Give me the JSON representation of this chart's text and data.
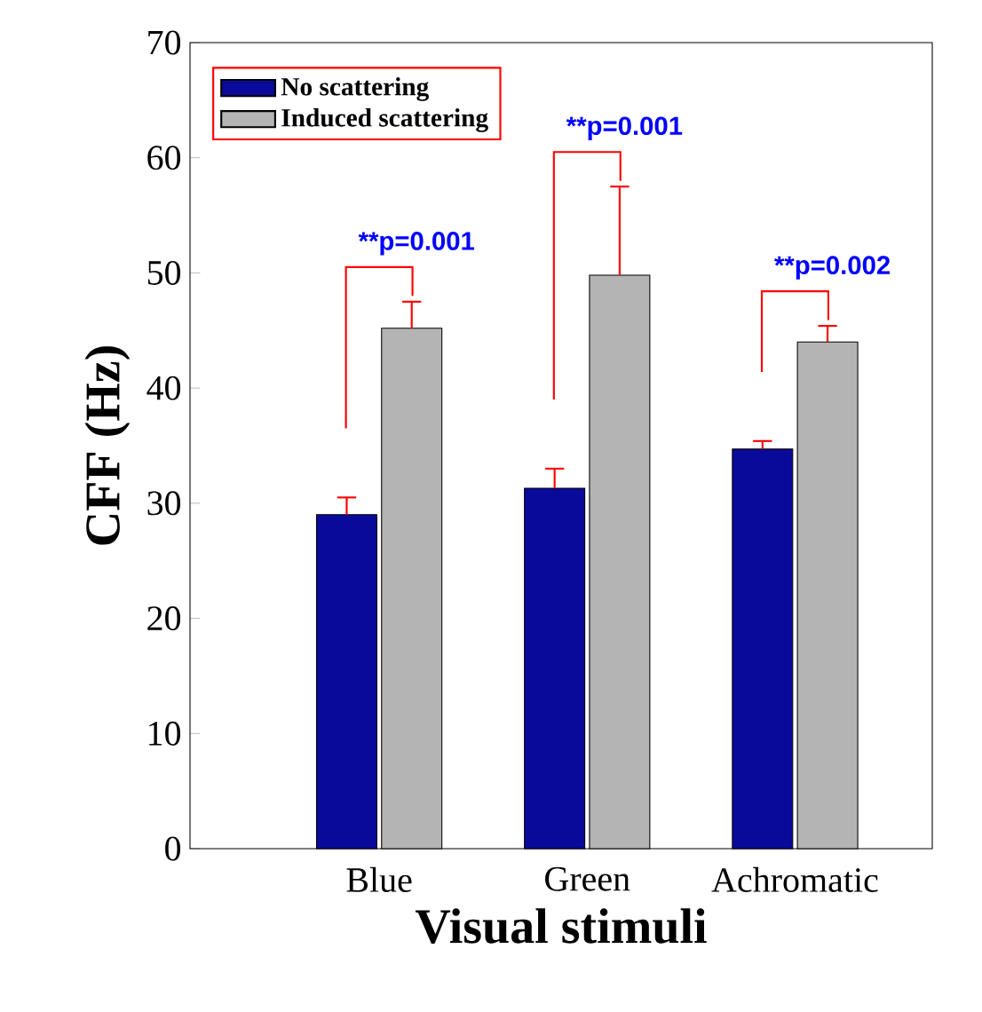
{
  "chart_data": {
    "type": "bar",
    "xlabel": "Visual stimuli",
    "ylabel": "CFF (Hz)",
    "categories": [
      "Blue",
      "Green",
      "Achromatic"
    ],
    "series": [
      {
        "name": "No scattering",
        "color": "#0a0a9a",
        "values": [
          29.0,
          31.3,
          34.7
        ],
        "errors": [
          1.5,
          1.7,
          0.7
        ]
      },
      {
        "name": "Induced scattering",
        "color": "#b4b4b4",
        "values": [
          45.2,
          49.8,
          44.0
        ],
        "errors": [
          2.3,
          7.7,
          1.4
        ]
      }
    ],
    "ylim": [
      0,
      70
    ],
    "yticks": [
      0,
      10,
      20,
      30,
      40,
      50,
      60,
      70
    ],
    "annotations": [
      "**p=0.001",
      "**p=0.001",
      "**p=0.002"
    ],
    "legend": "top left",
    "grid": false
  }
}
